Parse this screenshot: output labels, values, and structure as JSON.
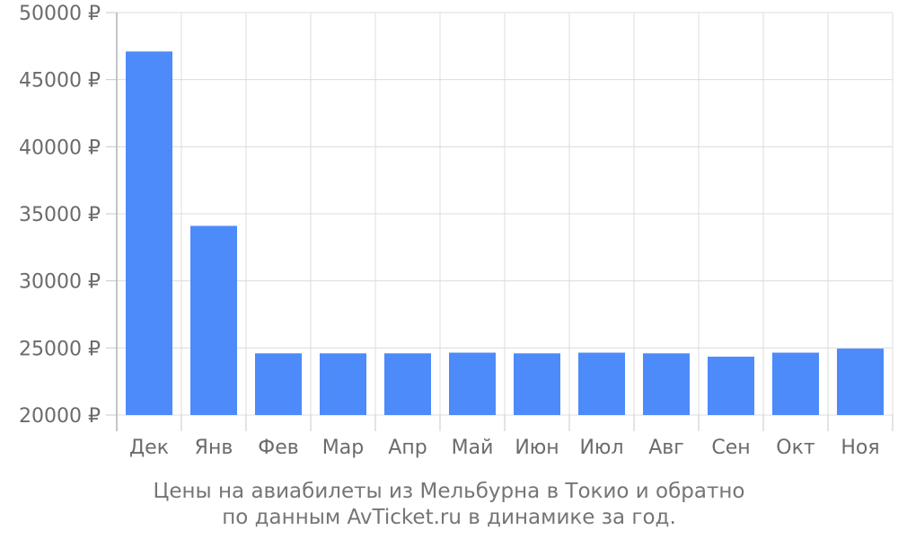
{
  "chart_data": {
    "type": "bar",
    "categories": [
      "Дек",
      "Янв",
      "Фев",
      "Мар",
      "Апр",
      "Май",
      "Июн",
      "Июл",
      "Авг",
      "Сен",
      "Окт",
      "Ноя"
    ],
    "values": [
      47100,
      34100,
      24600,
      24600,
      24600,
      24650,
      24600,
      24650,
      24600,
      24350,
      24650,
      24950
    ],
    "y_ticks": [
      "20000 ₽",
      "25000 ₽",
      "30000 ₽",
      "35000 ₽",
      "40000 ₽",
      "45000 ₽",
      "50000 ₽"
    ],
    "y_tick_values": [
      20000,
      25000,
      30000,
      35000,
      40000,
      45000,
      50000
    ],
    "ylim": [
      20000,
      50000
    ],
    "unit": "₽",
    "grid": true,
    "bar_color": "#4d8afa",
    "caption_line1": "Цены на авиабилеты из Мельбурна в Токио и обратно",
    "caption_line2": "по данным AvTicket.ru в динамике за год."
  }
}
